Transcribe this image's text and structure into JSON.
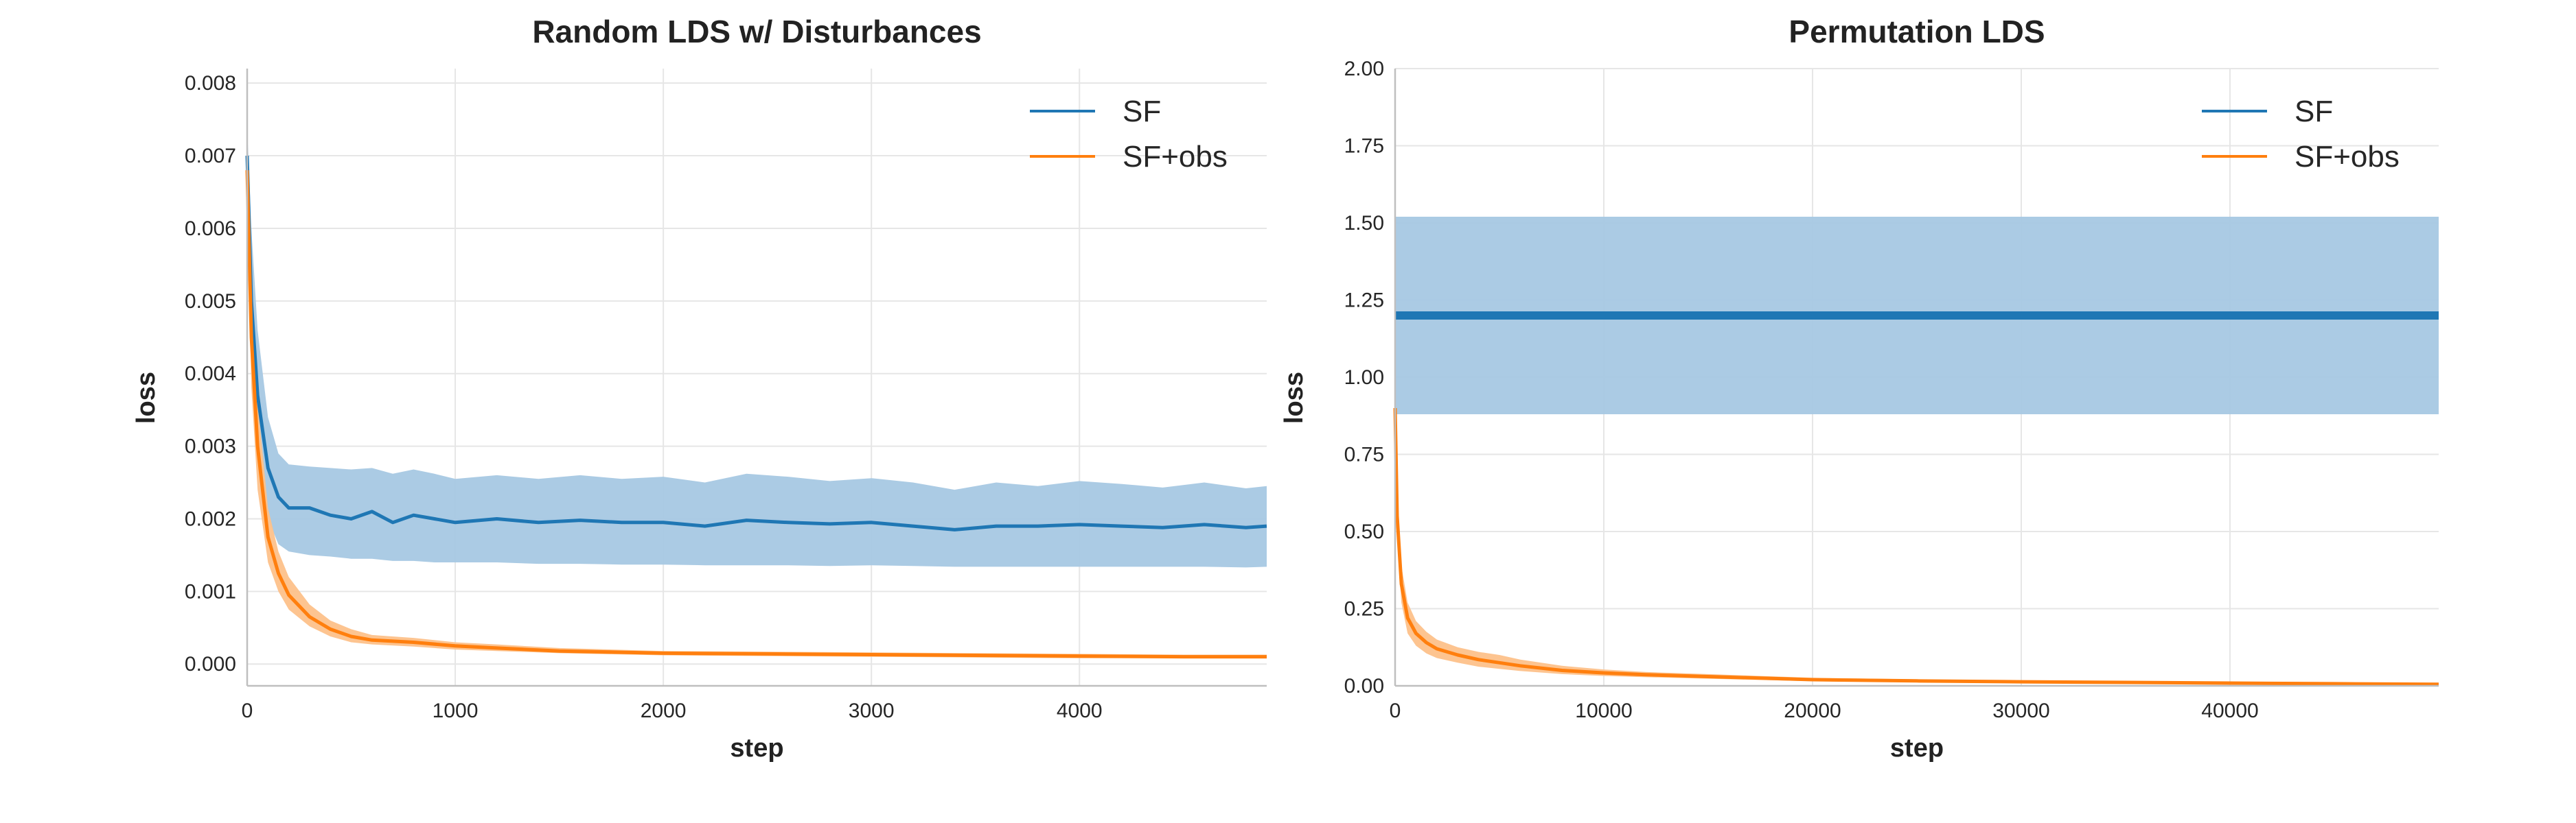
{
  "chart_data": [
    {
      "type": "line",
      "title": "Random LDS w/ Disturbances",
      "xlabel": "step",
      "ylabel": "loss",
      "xlim": [
        0,
        4900
      ],
      "ylim": [
        -0.0003,
        0.0082
      ],
      "xticks": [
        0,
        1000,
        2000,
        3000,
        4000
      ],
      "yticks": [
        0.0,
        0.001,
        0.002,
        0.003,
        0.004,
        0.005,
        0.006,
        0.007,
        0.008
      ],
      "xtick_labels": [
        "0",
        "1000",
        "2000",
        "3000",
        "4000"
      ],
      "ytick_labels": [
        "0.000",
        "0.001",
        "0.002",
        "0.003",
        "0.004",
        "0.005",
        "0.006",
        "0.007",
        "0.008"
      ],
      "grid": true,
      "legend": "top-right",
      "series": [
        {
          "name": "SF",
          "color": "#1f77b4",
          "band_color": "#a6c8e3",
          "x": [
            0,
            20,
            50,
            100,
            150,
            200,
            300,
            400,
            500,
            600,
            700,
            800,
            900,
            1000,
            1200,
            1400,
            1600,
            1800,
            2000,
            2200,
            2400,
            2600,
            2800,
            3000,
            3200,
            3400,
            3600,
            3800,
            4000,
            4200,
            4400,
            4600,
            4800,
            4900
          ],
          "y": [
            0.007,
            0.005,
            0.0037,
            0.0027,
            0.0023,
            0.00215,
            0.00215,
            0.00205,
            0.002,
            0.0021,
            0.00195,
            0.00205,
            0.002,
            0.00195,
            0.002,
            0.00195,
            0.00198,
            0.00195,
            0.00195,
            0.0019,
            0.00198,
            0.00195,
            0.00193,
            0.00195,
            0.0019,
            0.00185,
            0.0019,
            0.0019,
            0.00192,
            0.0019,
            0.00188,
            0.00192,
            0.00188,
            0.0019
          ],
          "lower": [
            0.0066,
            0.004,
            0.0028,
            0.002,
            0.00165,
            0.00155,
            0.0015,
            0.00148,
            0.00145,
            0.00145,
            0.00142,
            0.00142,
            0.0014,
            0.0014,
            0.0014,
            0.00138,
            0.00138,
            0.00137,
            0.00137,
            0.00136,
            0.00136,
            0.00136,
            0.00135,
            0.00136,
            0.00135,
            0.00134,
            0.00134,
            0.00134,
            0.00134,
            0.00134,
            0.00134,
            0.00134,
            0.00133,
            0.00134
          ],
          "upper": [
            0.0074,
            0.006,
            0.0046,
            0.0034,
            0.0029,
            0.00275,
            0.00272,
            0.0027,
            0.00268,
            0.0027,
            0.00262,
            0.00268,
            0.00262,
            0.00255,
            0.0026,
            0.00255,
            0.0026,
            0.00255,
            0.00258,
            0.0025,
            0.00262,
            0.00258,
            0.00252,
            0.00256,
            0.0025,
            0.0024,
            0.0025,
            0.00245,
            0.00252,
            0.00248,
            0.00243,
            0.0025,
            0.00242,
            0.00245
          ]
        },
        {
          "name": "SF+obs",
          "color": "#ff7f0e",
          "band_color": "#fdc18a",
          "x": [
            0,
            20,
            50,
            100,
            150,
            200,
            300,
            400,
            500,
            600,
            800,
            1000,
            1200,
            1500,
            2000,
            2500,
            3000,
            3500,
            4000,
            4500,
            4900
          ],
          "y": [
            0.0068,
            0.0045,
            0.003,
            0.00175,
            0.00125,
            0.00095,
            0.00065,
            0.00048,
            0.00038,
            0.00033,
            0.0003,
            0.00025,
            0.00022,
            0.00018,
            0.00015,
            0.00014,
            0.00013,
            0.00012,
            0.00011,
            0.0001,
            0.0001
          ],
          "lower": [
            0.0064,
            0.0038,
            0.0024,
            0.0014,
            0.001,
            0.00075,
            0.00052,
            0.00038,
            0.0003,
            0.00027,
            0.00024,
            0.0002,
            0.00018,
            0.00015,
            0.00012,
            0.00011,
            0.0001,
            9e-05,
            8e-05,
            8e-05,
            8e-05
          ],
          "upper": [
            0.0072,
            0.0052,
            0.0036,
            0.00215,
            0.00155,
            0.0012,
            0.00082,
            0.0006,
            0.00048,
            0.0004,
            0.00036,
            0.0003,
            0.00027,
            0.00022,
            0.00018,
            0.00017,
            0.00016,
            0.00015,
            0.00014,
            0.00013,
            0.00013
          ]
        }
      ]
    },
    {
      "type": "line",
      "title": "Permutation LDS",
      "xlabel": "step",
      "ylabel": "loss",
      "xlim": [
        0,
        50000
      ],
      "ylim": [
        0,
        2.0
      ],
      "xticks": [
        0,
        10000,
        20000,
        30000,
        40000
      ],
      "yticks": [
        0.0,
        0.25,
        0.5,
        0.75,
        1.0,
        1.25,
        1.5,
        1.75,
        2.0
      ],
      "xtick_labels": [
        "0",
        "10000",
        "20000",
        "30000",
        "40000"
      ],
      "ytick_labels": [
        "0.00",
        "0.25",
        "0.50",
        "0.75",
        "1.00",
        "1.25",
        "1.50",
        "1.75",
        "2.00"
      ],
      "grid": true,
      "legend": "top-right",
      "series": [
        {
          "name": "SF",
          "color": "#1f77b4",
          "band_color": "#a6c8e3",
          "x": [
            0,
            50000
          ],
          "y": [
            1.2,
            1.2
          ],
          "lower": [
            0.88,
            0.88
          ],
          "upper": [
            1.52,
            1.52
          ]
        },
        {
          "name": "SF+obs",
          "color": "#ff7f0e",
          "band_color": "#fdc18a",
          "x": [
            0,
            100,
            300,
            600,
            1000,
            1500,
            2000,
            3000,
            4000,
            5000,
            6000,
            8000,
            10000,
            12000,
            15000,
            20000,
            25000,
            30000,
            35000,
            40000,
            45000,
            50000
          ],
          "y": [
            0.9,
            0.55,
            0.33,
            0.22,
            0.17,
            0.14,
            0.12,
            0.1,
            0.085,
            0.075,
            0.065,
            0.05,
            0.042,
            0.036,
            0.03,
            0.02,
            0.016,
            0.013,
            0.011,
            0.009,
            0.007,
            0.005
          ],
          "lower": [
            0.85,
            0.48,
            0.27,
            0.17,
            0.13,
            0.105,
            0.09,
            0.075,
            0.062,
            0.055,
            0.048,
            0.038,
            0.032,
            0.028,
            0.023,
            0.015,
            0.012,
            0.01,
            0.008,
            0.006,
            0.004,
            0.003
          ],
          "upper": [
            0.95,
            0.62,
            0.39,
            0.27,
            0.21,
            0.175,
            0.15,
            0.125,
            0.11,
            0.1,
            0.085,
            0.065,
            0.053,
            0.045,
            0.038,
            0.026,
            0.021,
            0.017,
            0.014,
            0.012,
            0.01,
            0.007
          ]
        }
      ]
    }
  ]
}
